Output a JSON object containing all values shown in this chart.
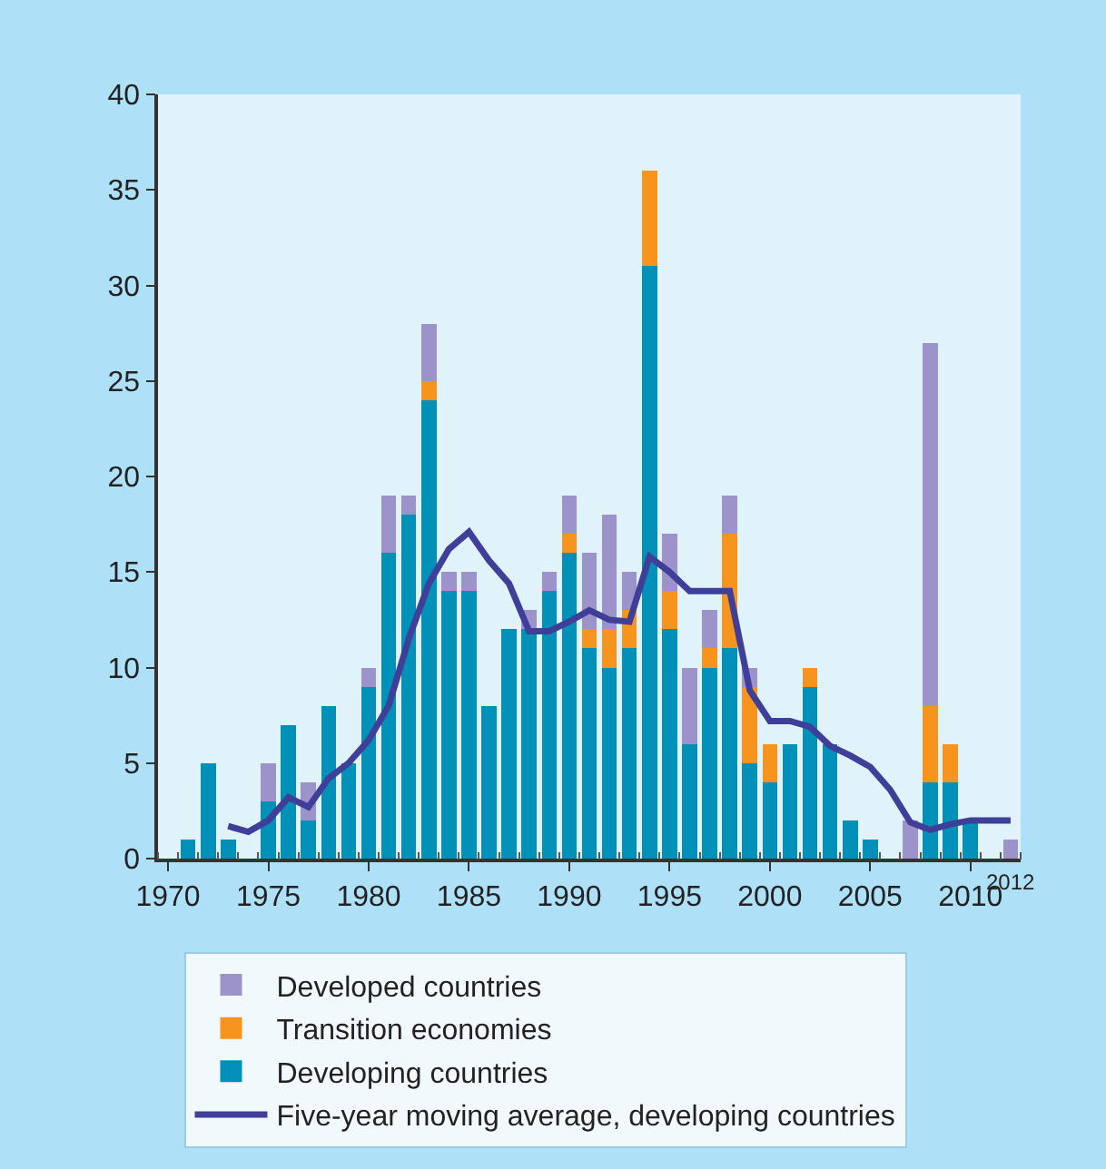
{
  "chart_data": {
    "type": "bar",
    "stacked": true,
    "legend": "bottom",
    "grid": false,
    "x": [
      1971,
      1972,
      1973,
      1974,
      1975,
      1976,
      1977,
      1978,
      1979,
      1980,
      1981,
      1982,
      1983,
      1984,
      1985,
      1986,
      1987,
      1988,
      1989,
      1990,
      1991,
      1992,
      1993,
      1994,
      1995,
      1996,
      1997,
      1998,
      1999,
      2000,
      2001,
      2002,
      2003,
      2004,
      2005,
      2006,
      2007,
      2008,
      2009,
      2010,
      2011,
      2012
    ],
    "xlim": [
      1969.5,
      2012.5
    ],
    "xticks": [
      1970,
      1975,
      1980,
      1985,
      1990,
      1995,
      2000,
      2005,
      2010
    ],
    "annotations": [
      {
        "text": "2012",
        "x": 2012,
        "y": 0
      }
    ],
    "ylim": [
      0,
      40
    ],
    "yticks": [
      0,
      5,
      10,
      15,
      20,
      25,
      30,
      35,
      40
    ],
    "series": [
      {
        "name": "Developing countries",
        "color": "#0090b8",
        "values": [
          1,
          5,
          1,
          0,
          3,
          7,
          2,
          8,
          5,
          9,
          16,
          18,
          24,
          14,
          14,
          8,
          12,
          12,
          14,
          16,
          11,
          10,
          11,
          31,
          12,
          6,
          10,
          11,
          5,
          4,
          6,
          9,
          6,
          2,
          1,
          0,
          0,
          4,
          4,
          2,
          0,
          0
        ]
      },
      {
        "name": "Transition economies",
        "color": "#f7941d",
        "values": [
          0,
          0,
          0,
          0,
          0,
          0,
          0,
          0,
          0,
          0,
          0,
          0,
          1,
          0,
          0,
          0,
          0,
          0,
          0,
          1,
          1,
          2,
          2,
          5,
          2,
          0,
          1,
          6,
          4,
          2,
          0,
          1,
          0,
          0,
          0,
          0,
          0,
          4,
          2,
          0,
          0,
          0
        ]
      },
      {
        "name": "Developed countries",
        "color": "#9b93c9",
        "values": [
          0,
          0,
          0,
          0,
          2,
          0,
          2,
          0,
          0,
          1,
          3,
          1,
          3,
          1,
          1,
          0,
          0,
          1,
          1,
          2,
          4,
          6,
          2,
          0,
          3,
          4,
          2,
          2,
          1,
          0,
          0,
          0,
          0,
          0,
          0,
          0,
          2,
          19,
          0,
          0,
          0,
          1
        ]
      },
      {
        "name": "Five-year moving average, developing countries",
        "type": "line",
        "color": "#3f3f99",
        "line_style": "solid",
        "x": [
          1973,
          1974,
          1975,
          1976,
          1977,
          1978,
          1979,
          1980,
          1981,
          1982,
          1983,
          1984,
          1985,
          1986,
          1987,
          1988,
          1989,
          1990,
          1991,
          1992,
          1993,
          1994,
          1995,
          1996,
          1997,
          1998,
          1999,
          2000,
          2001,
          2002,
          2003,
          2004,
          2005,
          2006,
          2007,
          2008,
          2009,
          2010,
          2011,
          2012
        ],
        "values": [
          1.7,
          1.4,
          2.0,
          3.2,
          2.7,
          4.2,
          5.0,
          6.2,
          8.0,
          11.5,
          14.4,
          16.2,
          17.1,
          15.6,
          14.4,
          11.9,
          11.9,
          12.4,
          13.0,
          12.5,
          12.4,
          15.8,
          15.0,
          14.0,
          14.0,
          14.0,
          8.8,
          7.2,
          7.2,
          6.9,
          5.9,
          5.4,
          4.8,
          3.6,
          1.9,
          1.5,
          1.8,
          2.0,
          2.0,
          2.0
        ]
      }
    ]
  }
}
